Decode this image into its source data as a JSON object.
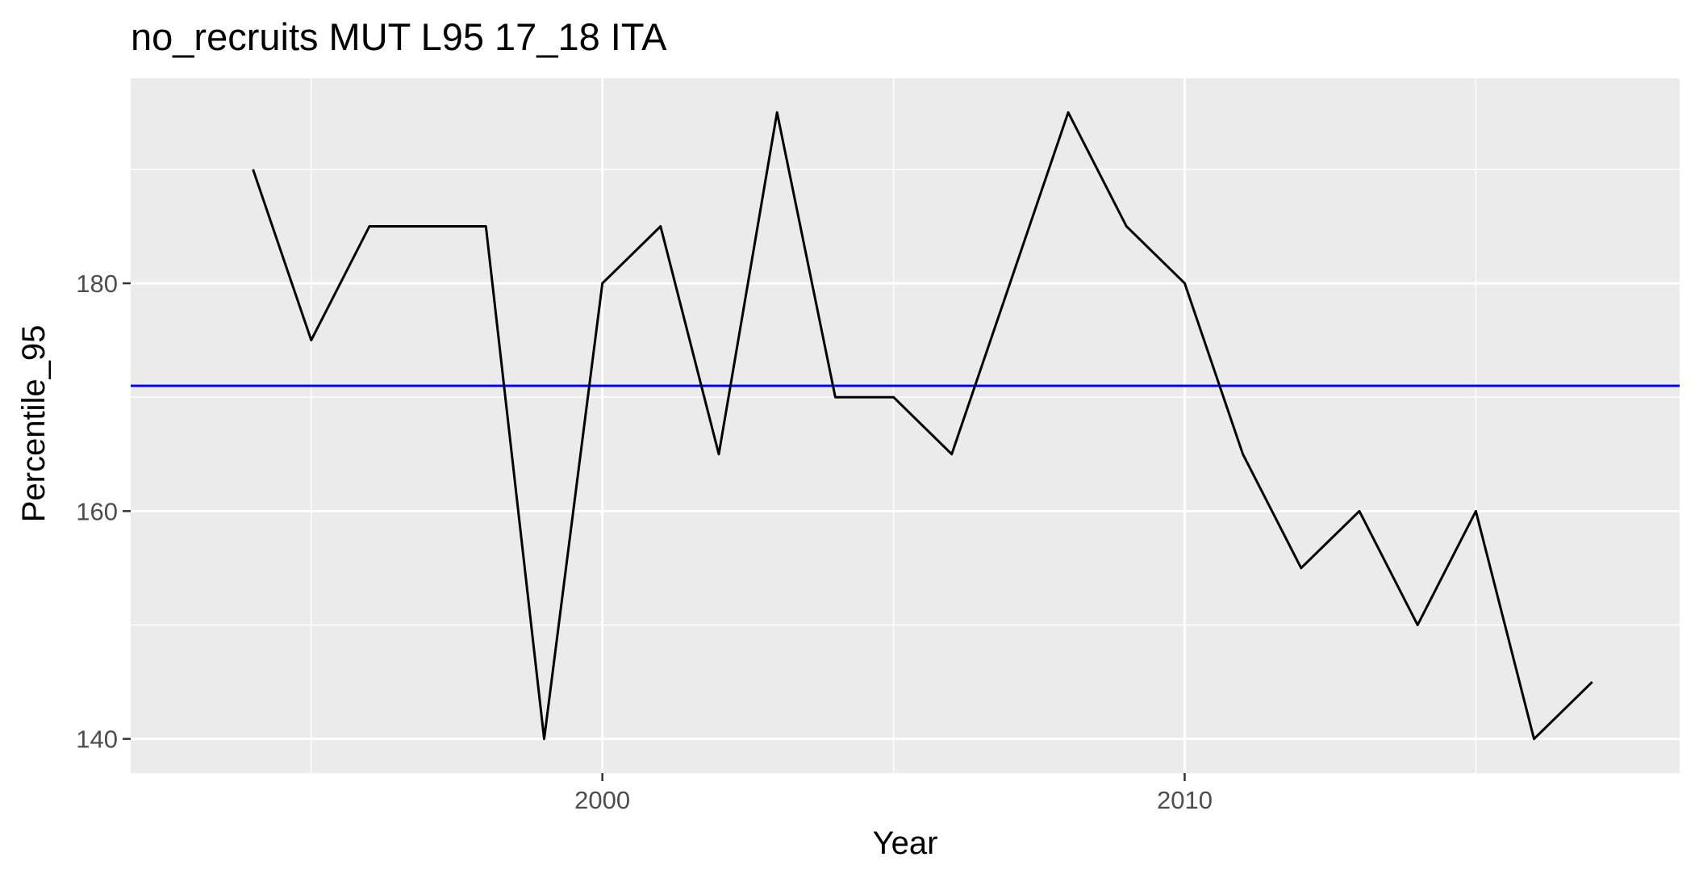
{
  "chart_data": {
    "type": "line",
    "title": "no_recruits MUT L95 17_18 ITA",
    "xlabel": "Year",
    "ylabel": "Percentile_95",
    "xlim": [
      1991.9,
      2018.5
    ],
    "ylim": [
      137,
      198
    ],
    "x_ticks": [
      2000,
      2010
    ],
    "x_tick_labels": [
      "2000",
      "2010"
    ],
    "x_minor_ticks": [
      1995,
      2005,
      2015
    ],
    "y_ticks": [
      140,
      160,
      180
    ],
    "y_tick_labels": [
      "140",
      "160",
      "180"
    ],
    "y_minor_ticks": [
      150,
      170,
      190
    ],
    "grid": true,
    "series": [
      {
        "color": "#000000",
        "x": [
          1994,
          1995,
          1996,
          1997,
          1998,
          1999,
          2000,
          2001,
          2002,
          2003,
          2004,
          2005,
          2006,
          2007,
          2008,
          2009,
          2010,
          2011,
          2012,
          2013,
          2014,
          2015,
          2016,
          2017
        ],
        "values": [
          190,
          175,
          185,
          185,
          185,
          140,
          180,
          185,
          165,
          195,
          170,
          170,
          165,
          180,
          195,
          185,
          180,
          165,
          155,
          160,
          150,
          160,
          140,
          145
        ]
      }
    ],
    "reference_line": {
      "y": 171,
      "color": "#0000ff"
    }
  },
  "colors": {
    "panel_background": "#ebebeb",
    "gridline": "#ffffff",
    "line": "#000000",
    "mean_line": "#0000ff",
    "tick_text": "#4d4d4d"
  }
}
